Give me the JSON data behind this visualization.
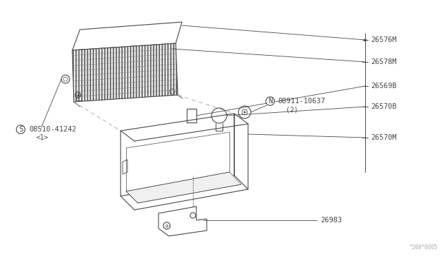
{
  "bg_color": "#ffffff",
  "line_color": "#444444",
  "text_color": "#444444",
  "fig_width": 6.4,
  "fig_height": 3.72,
  "dpi": 100,
  "watermark": "^268*0005",
  "label_26576M": "26576M",
  "label_26578M": "26578M",
  "label_26569B": "26569B",
  "label_26570B": "26570B",
  "label_26570M": "26570M",
  "label_nut": "08911-10637",
  "label_nut_note": "(2)",
  "label_screw": "08510-41242",
  "label_screw_note": "<1>",
  "label_26983": "26983"
}
